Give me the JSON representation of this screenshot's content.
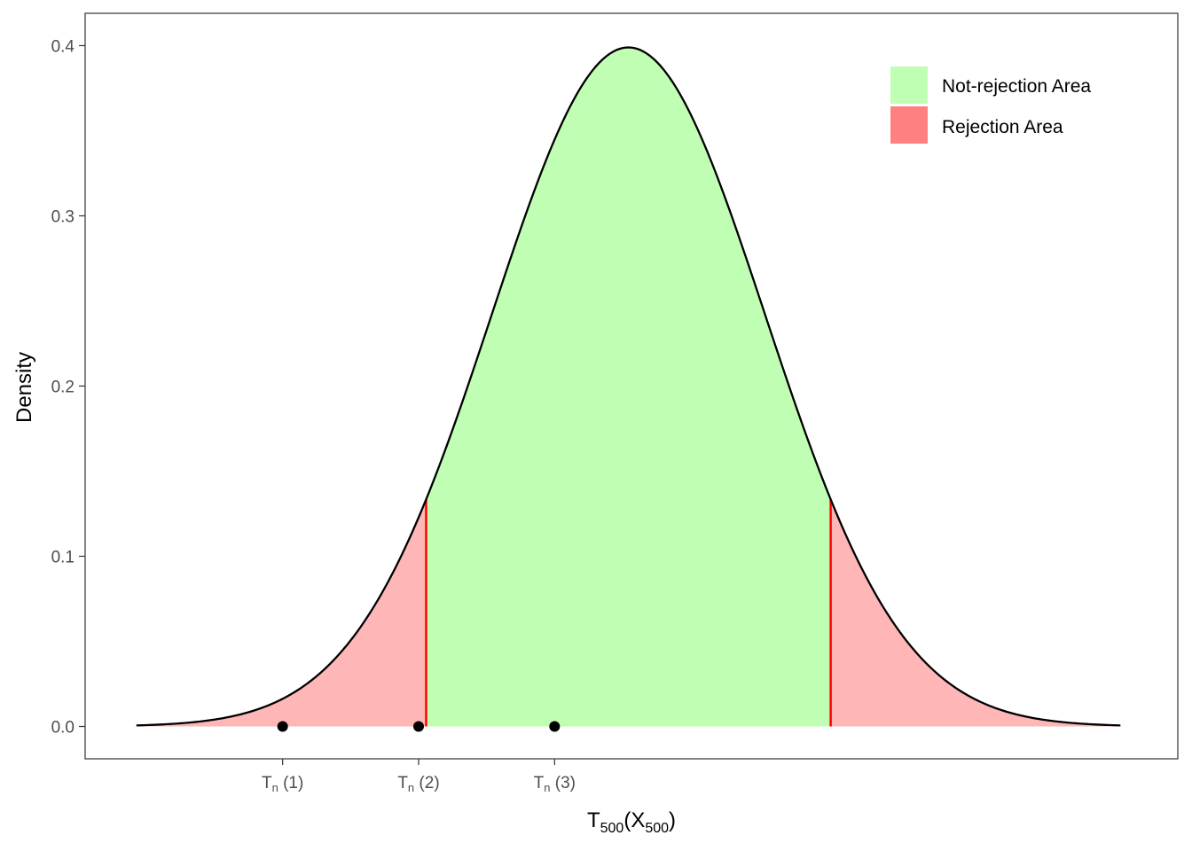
{
  "chart_data": {
    "type": "area",
    "distribution": "standard normal density",
    "x_range": [
      -3.6,
      3.6
    ],
    "ylim": [
      -0.019,
      0.419
    ],
    "y_ticks": [
      0.0,
      0.1,
      0.2,
      0.3,
      0.4
    ],
    "y_tick_labels": [
      "0.0",
      "0.1",
      "0.2",
      "0.3",
      "0.4"
    ],
    "ylabel": "Density",
    "xlabel": {
      "main": "T",
      "sub": "500",
      "open": "(X",
      "sub2": "500",
      "close": ")"
    },
    "critical_values": [
      -1.48,
      1.48
    ],
    "x_ticks": [
      {
        "x": -2.53,
        "base": "T",
        "sub": "n",
        "suffix": " (1)"
      },
      {
        "x": -1.535,
        "base": "T",
        "sub": "n",
        "suffix": " (2)"
      },
      {
        "x": -0.54,
        "base": "T",
        "sub": "n",
        "suffix": " (3)"
      }
    ],
    "points": [
      {
        "x": -2.53,
        "y": 0
      },
      {
        "x": -1.535,
        "y": 0
      },
      {
        "x": -0.54,
        "y": 0
      }
    ],
    "series": [
      {
        "name": "Not-rejection Area",
        "color": "#c0ffb3",
        "legend_color": "#bfffb3"
      },
      {
        "name": "Rejection Area",
        "color": "#ffb6b6",
        "legend_color": "#ff8080"
      }
    ],
    "curve_color": "#000000",
    "critical_line_color": "#ff0000",
    "legend_position": "top-right",
    "grid": false
  }
}
